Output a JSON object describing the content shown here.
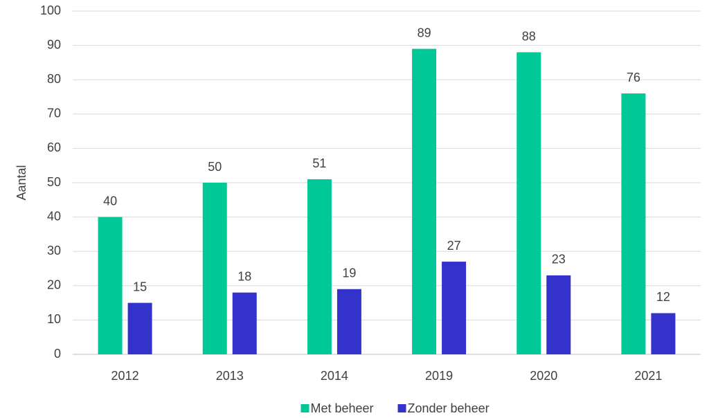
{
  "chart_data": {
    "type": "bar",
    "y_label": "Aantal",
    "categories": [
      "2012",
      "2013",
      "2014",
      "2019",
      "2020",
      "2021"
    ],
    "series": [
      {
        "name": "Met beheer",
        "color": "#00c896",
        "values": [
          40,
          50,
          51,
          89,
          88,
          76
        ]
      },
      {
        "name": "Zonder beheer",
        "color": "#3333cc",
        "values": [
          15,
          18,
          19,
          27,
          23,
          12
        ]
      }
    ],
    "ylim": [
      0,
      100
    ],
    "yticks": [
      0,
      10,
      20,
      30,
      40,
      50,
      60,
      70,
      80,
      90,
      100
    ],
    "grid": true,
    "legend": "bottom"
  }
}
